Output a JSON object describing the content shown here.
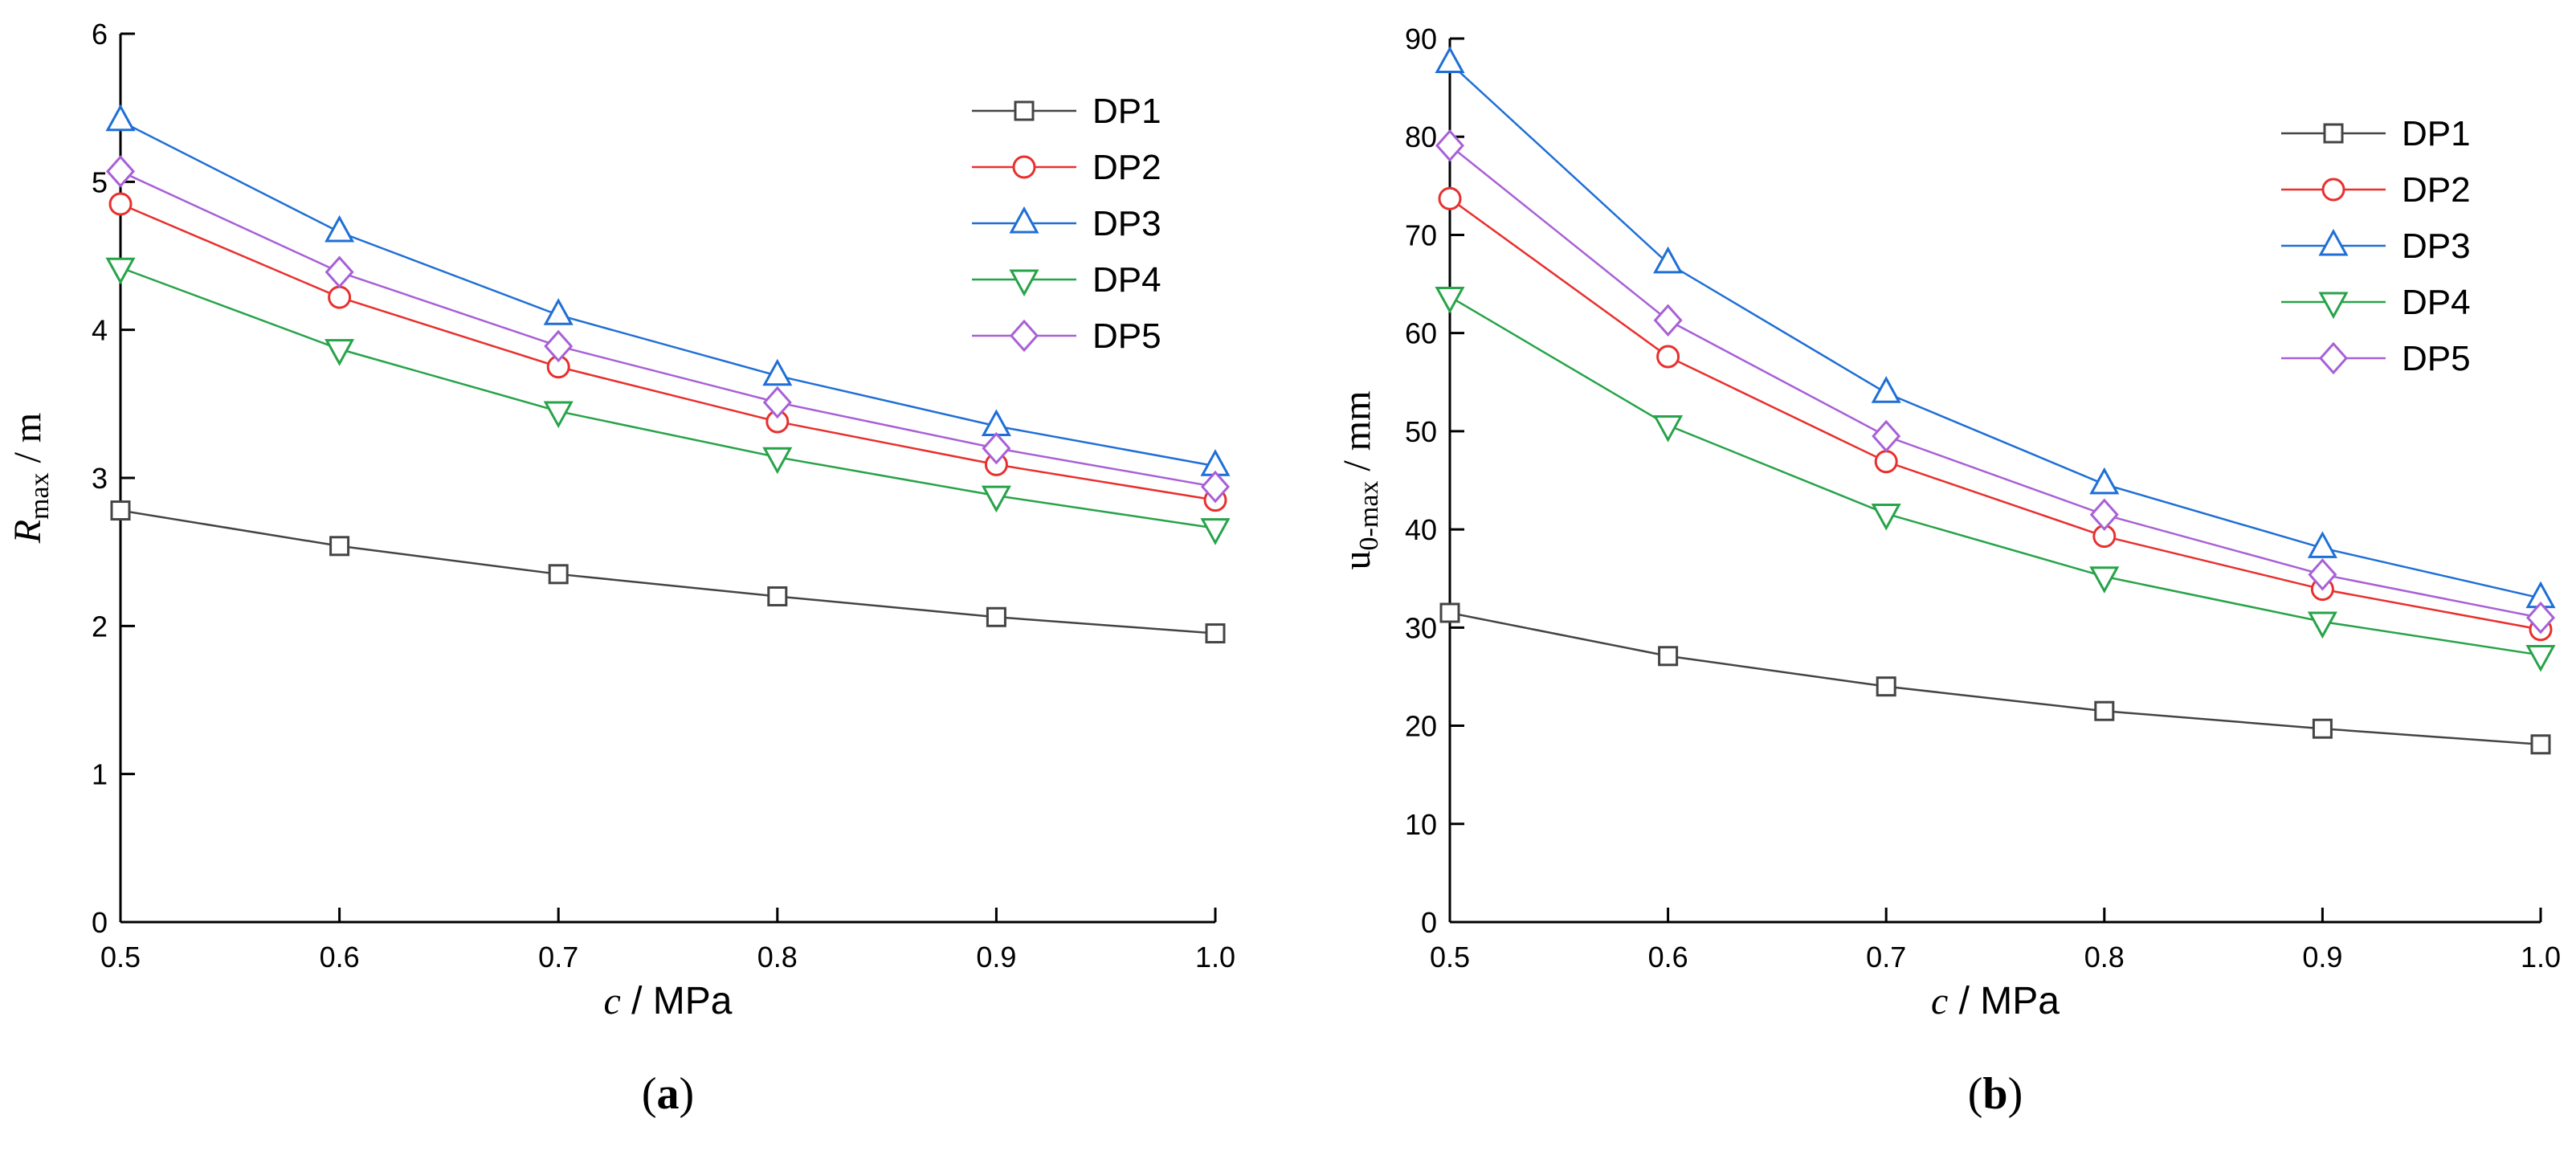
{
  "figure": {
    "colors": {
      "DP1": "#444444",
      "DP2": "#e8302e",
      "DP3": "#1f6fd6",
      "DP4": "#27a349",
      "DP5": "#a860d6"
    }
  },
  "chart_data": [
    {
      "type": "line",
      "panel_label": "a",
      "xlabel": {
        "symbol": "c",
        "unit": " / MPa"
      },
      "ylabel": {
        "symbol": "R",
        "subscript": "max",
        "unit": " / m"
      },
      "x": [
        0.5,
        0.6,
        0.7,
        0.8,
        0.9,
        1.0
      ],
      "xlim": [
        0.5,
        1.0
      ],
      "ylim": [
        0,
        6
      ],
      "xticks": [
        "0.5",
        "0.6",
        "0.7",
        "0.8",
        "0.9",
        "1.0"
      ],
      "yticks": [
        "0",
        "1",
        "2",
        "3",
        "4",
        "5",
        "6"
      ],
      "legend_position": "top-right",
      "series": [
        {
          "name": "DP1",
          "marker": "square",
          "values": [
            2.78,
            2.54,
            2.35,
            2.2,
            2.06,
            1.95
          ]
        },
        {
          "name": "DP2",
          "marker": "circle",
          "values": [
            4.85,
            4.22,
            3.75,
            3.38,
            3.09,
            2.85
          ]
        },
        {
          "name": "DP3",
          "marker": "triangle-up",
          "values": [
            5.41,
            4.66,
            4.1,
            3.69,
            3.35,
            3.08
          ]
        },
        {
          "name": "DP4",
          "marker": "triangle-down",
          "values": [
            4.42,
            3.87,
            3.45,
            3.14,
            2.88,
            2.66
          ]
        },
        {
          "name": "DP5",
          "marker": "diamond",
          "values": [
            5.07,
            4.39,
            3.89,
            3.51,
            3.2,
            2.94
          ]
        }
      ]
    },
    {
      "type": "line",
      "panel_label": "b",
      "xlabel": {
        "symbol": "c",
        "unit": " / MPa"
      },
      "ylabel": {
        "symbol": "u",
        "subscript": "0-max",
        "unit": " / mm"
      },
      "x": [
        0.5,
        0.6,
        0.7,
        0.8,
        0.9,
        1.0
      ],
      "xlim": [
        0.5,
        1.0
      ],
      "ylim": [
        0,
        90
      ],
      "xticks": [
        "0.5",
        "0.6",
        "0.7",
        "0.8",
        "0.9",
        "1.0"
      ],
      "yticks": [
        "0",
        "10",
        "20",
        "30",
        "40",
        "50",
        "60",
        "70",
        "80",
        "90"
      ],
      "legend_position": "top-right",
      "series": [
        {
          "name": "DP1",
          "marker": "square",
          "values": [
            31.5,
            27.1,
            24.0,
            21.5,
            19.7,
            18.1
          ]
        },
        {
          "name": "DP2",
          "marker": "circle",
          "values": [
            73.7,
            57.6,
            46.9,
            39.3,
            33.9,
            29.8
          ]
        },
        {
          "name": "DP3",
          "marker": "triangle-up",
          "values": [
            87.5,
            67.1,
            53.9,
            44.6,
            38.1,
            33.0
          ]
        },
        {
          "name": "DP4",
          "marker": "triangle-down",
          "values": [
            63.7,
            50.6,
            41.6,
            35.2,
            30.6,
            27.2
          ]
        },
        {
          "name": "DP5",
          "marker": "diamond",
          "values": [
            79.1,
            61.3,
            49.5,
            41.5,
            35.4,
            31.0
          ]
        }
      ]
    }
  ]
}
